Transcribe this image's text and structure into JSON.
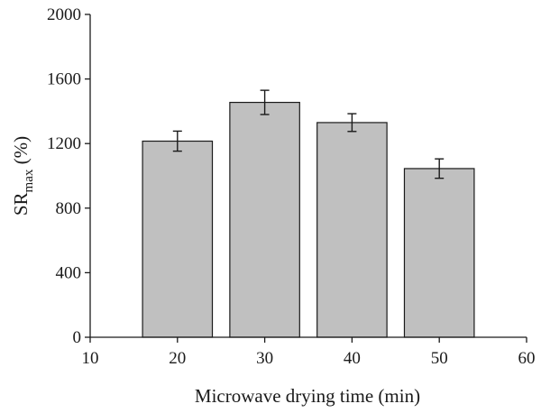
{
  "chart_data": {
    "type": "bar",
    "title": "",
    "xlabel": "Microwave drying time (min)",
    "ylabel": {
      "main": "SR",
      "sub": "max",
      "unit": " (%)"
    },
    "x": [
      20,
      30,
      40,
      50
    ],
    "values": [
      1215,
      1455,
      1330,
      1045
    ],
    "errors": [
      62,
      75,
      55,
      60
    ],
    "bar_width": 8,
    "xlim": [
      10,
      60
    ],
    "ylim": [
      0,
      2000
    ],
    "xticks": [
      10,
      20,
      30,
      40,
      50,
      60
    ],
    "yticks": [
      0,
      400,
      800,
      1200,
      1600,
      2000
    ],
    "grid": false,
    "legend": "none",
    "colors": {
      "bar_fill": "#c0c0c0",
      "bar_stroke": "#1a1a1a",
      "axis": "#1a1a1a"
    }
  }
}
